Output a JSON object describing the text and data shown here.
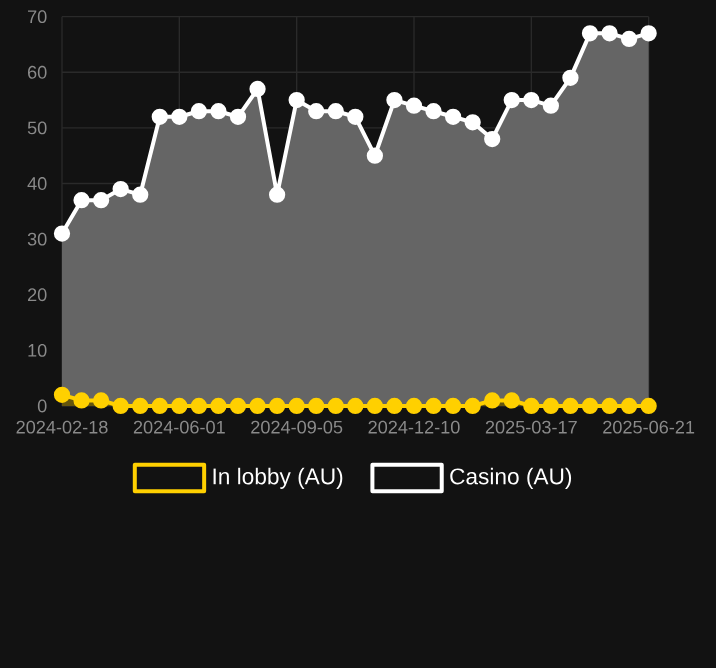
{
  "chart_data": {
    "type": "area",
    "categories": [
      "2024-02-18",
      null,
      null,
      null,
      null,
      null,
      "2024-06-01",
      null,
      null,
      null,
      null,
      null,
      "2024-09-05",
      null,
      null,
      null,
      null,
      null,
      "2024-12-10",
      null,
      null,
      null,
      null,
      null,
      "2025-03-17",
      null,
      null,
      null,
      null,
      null,
      "2025-06-21"
    ],
    "series": [
      {
        "name": "In lobby (AU)",
        "color": "#ffd000",
        "values": [
          2,
          1,
          1,
          0,
          0,
          0,
          0,
          0,
          0,
          0,
          0,
          0,
          0,
          0,
          0,
          0,
          0,
          0,
          0,
          0,
          0,
          0,
          1,
          1,
          0,
          0,
          0,
          0,
          0,
          0,
          0
        ]
      },
      {
        "name": "Casino (AU)",
        "color": "#ffffff",
        "values": [
          31,
          37,
          37,
          39,
          38,
          52,
          52,
          53,
          53,
          52,
          57,
          38,
          55,
          53,
          53,
          52,
          45,
          55,
          54,
          53,
          52,
          51,
          48,
          55,
          55,
          54,
          59,
          67,
          67,
          66,
          67
        ]
      }
    ],
    "ylim": [
      0,
      70
    ],
    "yticks": [
      0,
      10,
      20,
      30,
      40,
      50,
      60,
      70
    ],
    "grid": true,
    "legend": "bottom",
    "marker": "circle"
  }
}
